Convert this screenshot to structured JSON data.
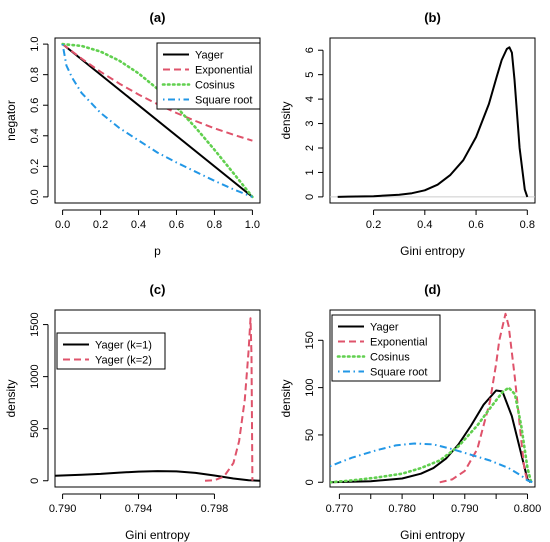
{
  "chart_data": [
    {
      "type": "line",
      "title": "(a)",
      "xlabel": "p",
      "ylabel": "negator",
      "xlim": [
        -0.04,
        1.04
      ],
      "ylim": [
        -0.04,
        1.04
      ],
      "xticks": [
        0.0,
        0.2,
        0.4,
        0.6,
        0.8,
        1.0
      ],
      "xtick_labels": [
        "0.0",
        "0.2",
        "0.4",
        "0.6",
        "0.8",
        "1.0"
      ],
      "yticks": [
        0.0,
        0.2,
        0.4,
        0.6,
        0.8,
        1.0
      ],
      "ytick_labels": [
        "0.0",
        "0.2",
        "0.4",
        "0.6",
        "0.8",
        "1.0"
      ],
      "legend_position": "top-right",
      "series": [
        {
          "name": "Yager",
          "color": "#000000",
          "style": "solid",
          "x": [
            0.0,
            1.0
          ],
          "y": [
            1.0,
            0.0
          ]
        },
        {
          "name": "Exponential",
          "color": "#DF536B",
          "style": "dashed",
          "x": [
            0.0,
            0.1,
            0.2,
            0.3,
            0.4,
            0.5,
            0.6,
            0.7,
            0.8,
            0.9,
            1.0
          ],
          "y": [
            1.0,
            0.905,
            0.819,
            0.741,
            0.67,
            0.607,
            0.549,
            0.497,
            0.449,
            0.407,
            0.368
          ]
        },
        {
          "name": "Cosinus",
          "color": "#61D04F",
          "style": "dotted",
          "x": [
            0.0,
            0.1,
            0.2,
            0.3,
            0.4,
            0.5,
            0.6,
            0.7,
            0.8,
            0.9,
            1.0
          ],
          "y": [
            1.0,
            0.988,
            0.951,
            0.891,
            0.809,
            0.707,
            0.588,
            0.454,
            0.309,
            0.156,
            0.0
          ]
        },
        {
          "name": "Square root",
          "color": "#2297E6",
          "style": "dotdash",
          "x": [
            0.0,
            0.02,
            0.05,
            0.1,
            0.2,
            0.3,
            0.4,
            0.5,
            0.6,
            0.7,
            0.8,
            0.9,
            1.0
          ],
          "y": [
            1.0,
            0.86,
            0.78,
            0.68,
            0.55,
            0.45,
            0.37,
            0.29,
            0.225,
            0.165,
            0.105,
            0.05,
            0.0
          ]
        }
      ]
    },
    {
      "type": "line",
      "title": "(b)",
      "xlabel": "Gini entropy",
      "ylabel": "density",
      "xlim": [
        0.03,
        0.83
      ],
      "ylim": [
        -0.25,
        6.5
      ],
      "xticks": [
        0.2,
        0.4,
        0.6,
        0.8
      ],
      "xtick_labels": [
        "0.2",
        "0.4",
        "0.6",
        "0.8"
      ],
      "yticks": [
        0,
        1,
        2,
        3,
        4,
        5,
        6
      ],
      "ytick_labels": [
        "0",
        "1",
        "2",
        "3",
        "4",
        "5",
        "6"
      ],
      "baseline": true,
      "series": [
        {
          "name": "",
          "color": "#000000",
          "style": "solid",
          "x": [
            0.06,
            0.1,
            0.2,
            0.3,
            0.35,
            0.4,
            0.45,
            0.5,
            0.55,
            0.6,
            0.65,
            0.68,
            0.7,
            0.72,
            0.73,
            0.74,
            0.75,
            0.77,
            0.79,
            0.8
          ],
          "y": [
            0.0,
            0.01,
            0.03,
            0.09,
            0.15,
            0.27,
            0.5,
            0.9,
            1.5,
            2.45,
            3.8,
            4.9,
            5.6,
            6.05,
            6.12,
            5.9,
            4.8,
            2.0,
            0.3,
            0.0
          ]
        }
      ]
    },
    {
      "type": "line",
      "title": "(c)",
      "xlabel": "Gini entropy",
      "ylabel": "density",
      "xlim": [
        0.7896,
        0.8004
      ],
      "ylim": [
        -60,
        1640
      ],
      "xticks": [
        0.79,
        0.792,
        0.794,
        0.796,
        0.798
      ],
      "xtick_labels": [
        "0.790",
        "",
        "0.794",
        "",
        "0.798"
      ],
      "yticks": [
        0,
        500,
        1000,
        1500
      ],
      "ytick_labels": [
        "0",
        "500",
        "1000",
        "1500"
      ],
      "legend_position": "top-left",
      "series": [
        {
          "name": "Yager (k=1)",
          "color": "#000000",
          "style": "solid",
          "x": [
            0.7896,
            0.791,
            0.792,
            0.793,
            0.794,
            0.795,
            0.796,
            0.797,
            0.798,
            0.799,
            0.7998,
            0.8004
          ],
          "y": [
            48,
            58,
            66,
            78,
            88,
            93,
            90,
            75,
            50,
            22,
            5,
            0
          ]
        },
        {
          "name": "Yager (k=2)",
          "color": "#DF536B",
          "style": "dashed",
          "x": [
            0.7975,
            0.798,
            0.7985,
            0.799,
            0.7993,
            0.7996,
            0.7998,
            0.7999,
            0.79995,
            0.8
          ],
          "y": [
            0,
            5,
            40,
            170,
            380,
            780,
            1250,
            1560,
            1200,
            0
          ]
        }
      ]
    },
    {
      "type": "line",
      "title": "(d)",
      "xlabel": "Gini entropy",
      "ylabel": "density",
      "xlim": [
        0.7685,
        0.8012
      ],
      "ylim": [
        -5,
        182
      ],
      "xticks": [
        0.77,
        0.775,
        0.78,
        0.785,
        0.79,
        0.795,
        0.8
      ],
      "xtick_labels": [
        "0.770",
        "",
        "0.780",
        "",
        "0.790",
        "",
        "0.800"
      ],
      "yticks": [
        0,
        50,
        100,
        150
      ],
      "ytick_labels": [
        "0",
        "50",
        "100",
        "150"
      ],
      "legend_position": "top-left",
      "series": [
        {
          "name": "Yager",
          "color": "#000000",
          "style": "solid",
          "x": [
            0.7685,
            0.775,
            0.78,
            0.783,
            0.785,
            0.787,
            0.789,
            0.791,
            0.793,
            0.795,
            0.796,
            0.7975,
            0.799,
            0.8,
            0.8005
          ],
          "y": [
            0,
            1,
            4,
            9,
            15,
            25,
            40,
            60,
            82,
            97,
            96,
            70,
            30,
            3,
            0
          ]
        },
        {
          "name": "Exponential",
          "color": "#DF536B",
          "style": "dashed",
          "x": [
            0.786,
            0.788,
            0.79,
            0.792,
            0.794,
            0.795,
            0.7955,
            0.7965,
            0.797,
            0.798,
            0.799,
            0.7995,
            0.8
          ],
          "y": [
            0,
            3,
            12,
            35,
            85,
            125,
            150,
            178,
            165,
            110,
            45,
            15,
            0
          ]
        },
        {
          "name": "Cosinus",
          "color": "#61D04F",
          "style": "dotted",
          "x": [
            0.7685,
            0.772,
            0.776,
            0.78,
            0.783,
            0.786,
            0.789,
            0.792,
            0.794,
            0.796,
            0.797,
            0.798,
            0.799,
            0.8,
            0.8006
          ],
          "y": [
            0,
            2,
            5,
            9,
            15,
            23,
            38,
            60,
            78,
            95,
            100,
            93,
            60,
            15,
            0
          ]
        },
        {
          "name": "Square root",
          "color": "#2297E6",
          "style": "dotdash",
          "x": [
            0.7685,
            0.772,
            0.776,
            0.779,
            0.782,
            0.785,
            0.788,
            0.791,
            0.794,
            0.797,
            0.799,
            0.8,
            0.8008
          ],
          "y": [
            17,
            26,
            34,
            39,
            41,
            40,
            35,
            29,
            23,
            15,
            7,
            2,
            0
          ]
        }
      ]
    }
  ]
}
